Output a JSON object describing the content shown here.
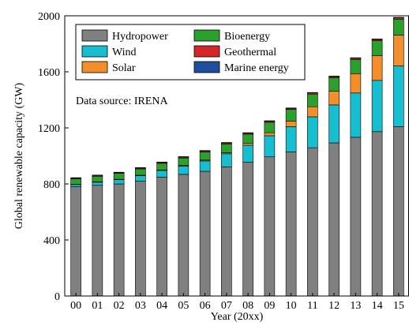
{
  "chart_data": {
    "type": "bar",
    "stacked": true,
    "xlabel": "Year (20xx)",
    "ylabel": "Global renewable capacity (GW)",
    "ylim": [
      0,
      2000
    ],
    "yticks": [
      "0",
      "400",
      "800",
      "1200",
      "1600",
      "2000"
    ],
    "ytick_values": [
      0,
      400,
      800,
      1200,
      1600,
      2000
    ],
    "categories": [
      "00",
      "01",
      "02",
      "03",
      "04",
      "05",
      "06",
      "07",
      "08",
      "09",
      "10",
      "11",
      "12",
      "13",
      "14",
      "15"
    ],
    "annotation": "Data source: IRENA",
    "legend_position": "top-left",
    "series": [
      {
        "name": "Hydropower",
        "color": "#808080",
        "values": [
          780,
          790,
          800,
          820,
          848,
          868,
          890,
          922,
          955,
          993,
          1028,
          1058,
          1093,
          1133,
          1173,
          1209
        ]
      },
      {
        "name": "Wind",
        "color": "#17becf",
        "values": [
          17,
          24,
          31,
          39,
          48,
          59,
          74,
          93,
          121,
          151,
          181,
          221,
          271,
          316,
          366,
          433
        ]
      },
      {
        "name": "Solar",
        "color": "#f28e2b",
        "values": [
          1,
          1,
          2,
          3,
          4,
          5,
          6,
          8,
          13,
          21,
          39,
          72,
          98,
          138,
          176,
          220
        ]
      },
      {
        "name": "Bioenergy",
        "color": "#2ca02c",
        "values": [
          38,
          40,
          42,
          45,
          47,
          53,
          58,
          62,
          66,
          75,
          84,
          90,
          96,
          101,
          107,
          114
        ]
      },
      {
        "name": "Geothermal",
        "color": "#d62728",
        "values": [
          8,
          8,
          8,
          9,
          9,
          9,
          10,
          10,
          10,
          10,
          10,
          11,
          11,
          12,
          12,
          12
        ]
      },
      {
        "name": "Marine energy",
        "color": "#1f4e9c",
        "values": [
          0.3,
          0.3,
          0.3,
          0.3,
          0.3,
          0.3,
          0.3,
          0.3,
          0.3,
          0.3,
          0.3,
          0.5,
          0.5,
          0.5,
          0.5,
          0.5
        ]
      }
    ],
    "legend_order": [
      "Hydropower",
      "Bioenergy",
      "Wind",
      "Geothermal",
      "Solar",
      "Marine energy"
    ]
  }
}
